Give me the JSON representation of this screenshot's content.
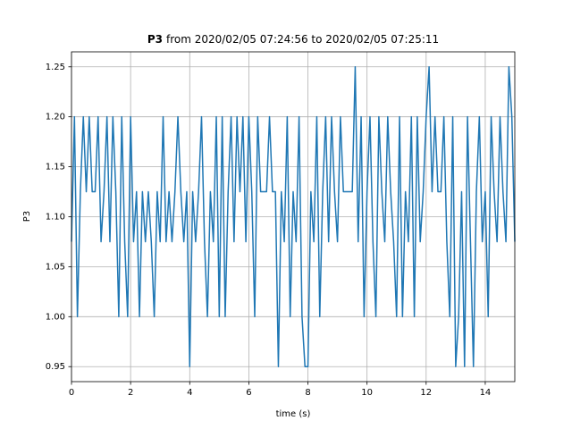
{
  "chart_data": {
    "type": "line",
    "title_name": "P3",
    "title_range": "from 2020/02/05 07:24:56 to 2020/02/05 07:25:11",
    "xlabel": "time (s)",
    "ylabel": "P3",
    "xlim": [
      0,
      15
    ],
    "ylim": [
      0.935,
      1.265
    ],
    "xticks": [
      0,
      2,
      4,
      6,
      8,
      10,
      12,
      14
    ],
    "yticks": [
      0.95,
      {
        "value": 1,
        "label": "1.00"
      },
      1.05,
      {
        "value": 1.1,
        "label": "1.10"
      },
      1.15,
      {
        "value": 1.2,
        "label": "1.20"
      },
      1.25
    ],
    "grid": true,
    "x": [
      0,
      0.1,
      0.2,
      0.3,
      0.4,
      0.5,
      0.6,
      0.7,
      0.8,
      0.9,
      1,
      1.1,
      1.2,
      1.3,
      1.4,
      1.5,
      1.6,
      1.7,
      1.8,
      1.9,
      2,
      2.1,
      2.2,
      2.3,
      2.4,
      2.5,
      2.6,
      2.7,
      2.8,
      2.9,
      3,
      3.1,
      3.2,
      3.3,
      3.4,
      3.5,
      3.6,
      3.7,
      3.8,
      3.9,
      4,
      4.1,
      4.2,
      4.3,
      4.4,
      4.5,
      4.6,
      4.7,
      4.8,
      4.9,
      5,
      5.1,
      5.2,
      5.3,
      5.4,
      5.5,
      5.6,
      5.7,
      5.8,
      5.9,
      6,
      6.1,
      6.2,
      6.3,
      6.4,
      6.5,
      6.6,
      6.7,
      6.8,
      6.9,
      7,
      7.1,
      7.2,
      7.3,
      7.4,
      7.5,
      7.6,
      7.7,
      7.8,
      7.9,
      8,
      8.1,
      8.2,
      8.3,
      8.4,
      8.5,
      8.6,
      8.7,
      8.8,
      8.9,
      9,
      9.1,
      9.2,
      9.3,
      9.4,
      9.5,
      9.6,
      9.7,
      9.8,
      9.9,
      10,
      10.1,
      10.2,
      10.3,
      10.4,
      10.5,
      10.6,
      10.7,
      10.8,
      10.9,
      11,
      11.1,
      11.2,
      11.3,
      11.4,
      11.5,
      11.6,
      11.7,
      11.8,
      11.9,
      12,
      12.1,
      12.2,
      12.3,
      12.4,
      12.5,
      12.6,
      12.7,
      12.8,
      12.9,
      13,
      13.1,
      13.2,
      13.3,
      13.4,
      13.5,
      13.6,
      13.7,
      13.8,
      13.9,
      14,
      14.1,
      14.2,
      14.3,
      14.4,
      14.5,
      14.6,
      14.7,
      14.8,
      14.9,
      15
    ],
    "series": [
      {
        "color": "#1f77b4",
        "values": [
          1.075,
          1.2,
          1.0,
          1.125,
          1.2,
          1.125,
          1.2,
          1.125,
          1.125,
          1.2,
          1.075,
          1.125,
          1.2,
          1.075,
          1.2,
          1.125,
          1.0,
          1.2,
          1.075,
          1.0,
          1.2,
          1.075,
          1.125,
          1.0,
          1.125,
          1.075,
          1.125,
          1.075,
          1.0,
          1.125,
          1.075,
          1.2,
          1.075,
          1.125,
          1.075,
          1.125,
          1.2,
          1.125,
          1.075,
          1.125,
          0.95,
          1.125,
          1.075,
          1.125,
          1.2,
          1.075,
          1.0,
          1.125,
          1.075,
          1.2,
          1.0,
          1.2,
          1.0,
          1.125,
          1.2,
          1.075,
          1.2,
          1.125,
          1.2,
          1.075,
          1.2,
          1.125,
          1.0,
          1.2,
          1.125,
          1.125,
          1.125,
          1.2,
          1.125,
          1.125,
          0.95,
          1.125,
          1.075,
          1.2,
          1.0,
          1.125,
          1.075,
          1.2,
          1.0,
          0.95,
          0.95,
          1.125,
          1.075,
          1.2,
          1.0,
          1.125,
          1.2,
          1.075,
          1.2,
          1.125,
          1.075,
          1.2,
          1.125,
          1.125,
          1.125,
          1.125,
          1.25,
          1.075,
          1.2,
          1.0,
          1.125,
          1.2,
          1.075,
          1.0,
          1.2,
          1.125,
          1.075,
          1.2,
          1.125,
          1.075,
          1.0,
          1.2,
          1.0,
          1.125,
          1.075,
          1.2,
          1.0,
          1.2,
          1.075,
          1.125,
          1.2,
          1.25,
          1.125,
          1.2,
          1.125,
          1.125,
          1.2,
          1.075,
          1.0,
          1.2,
          0.95,
          1.0,
          1.125,
          0.95,
          1.2,
          1.075,
          0.95,
          1.125,
          1.2,
          1.075,
          1.125,
          1.0,
          1.2,
          1.125,
          1.075,
          1.2,
          1.125,
          1.075,
          1.25,
          1.2,
          1.075
        ]
      }
    ]
  }
}
